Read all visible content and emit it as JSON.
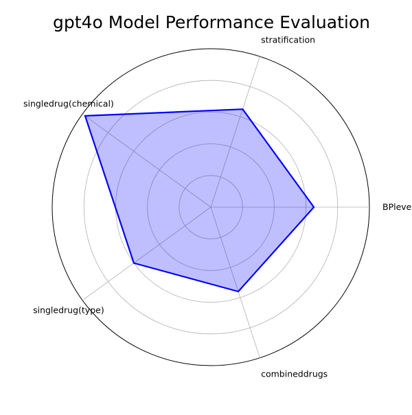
{
  "chart_data": {
    "type": "radar",
    "title": "gpt4o Model Performance Evaluation",
    "categories": [
      "BPlevel",
      "stratification",
      "singledrug(chemical)",
      "singledrug(type)",
      "combineddrugs"
    ],
    "series": [
      {
        "name": "gpt4o",
        "values": [
          0.65,
          0.65,
          0.98,
          0.6,
          0.56
        ],
        "line_color": "#0000ff",
        "fill_color": "#0000ff"
      }
    ],
    "rlim": [
      0,
      1
    ],
    "rticks": [
      0.2,
      0.4,
      0.6,
      0.8
    ],
    "grid": true,
    "legend": "none"
  }
}
